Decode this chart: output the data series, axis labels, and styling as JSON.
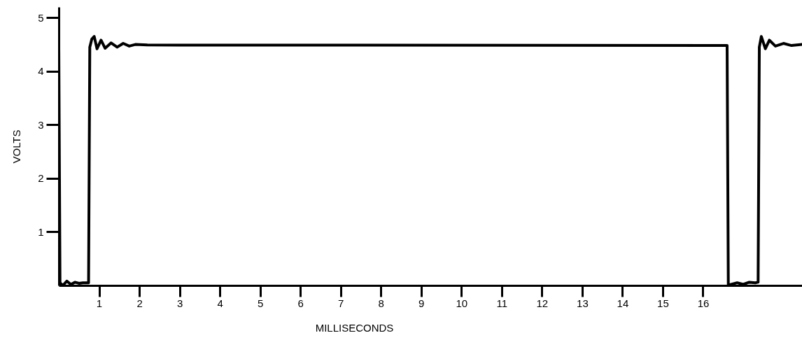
{
  "chart_data": {
    "type": "line",
    "xlabel": "MILLISECONDS",
    "ylabel": "VOLTS",
    "xlim": [
      0,
      18.46
    ],
    "ylim": [
      0,
      5.2
    ],
    "xticks": [
      1,
      2,
      3,
      4,
      5,
      6,
      7,
      8,
      9,
      10,
      11,
      12,
      13,
      14,
      15,
      16
    ],
    "yticks": [
      1,
      2,
      3,
      4,
      5
    ],
    "grid": false,
    "marker": "none",
    "line_style": "solid",
    "series": [
      {
        "color": "#000000",
        "x": [
          0,
          0.03,
          0.1,
          0.2,
          0.3,
          0.4,
          0.5,
          0.6,
          0.74,
          0.77,
          0.82,
          0.88,
          0.95,
          1.05,
          1.15,
          1.3,
          1.45,
          1.6,
          1.75,
          1.9,
          2.2,
          16.6,
          16.63,
          16.7,
          16.85,
          17.0,
          17.15,
          17.3,
          17.37,
          17.4,
          17.45,
          17.55,
          17.65,
          17.8,
          18.0,
          18.2,
          18.46
        ],
        "values": [
          4.5,
          0.05,
          0.0,
          0.08,
          0.02,
          0.06,
          0.04,
          0.05,
          0.05,
          4.45,
          4.6,
          4.65,
          4.42,
          4.58,
          4.43,
          4.53,
          4.45,
          4.52,
          4.47,
          4.5,
          4.49,
          4.48,
          0.0,
          0.02,
          0.05,
          0.02,
          0.06,
          0.05,
          0.06,
          4.45,
          4.65,
          4.42,
          4.58,
          4.47,
          4.52,
          4.48,
          4.5
        ]
      }
    ]
  }
}
